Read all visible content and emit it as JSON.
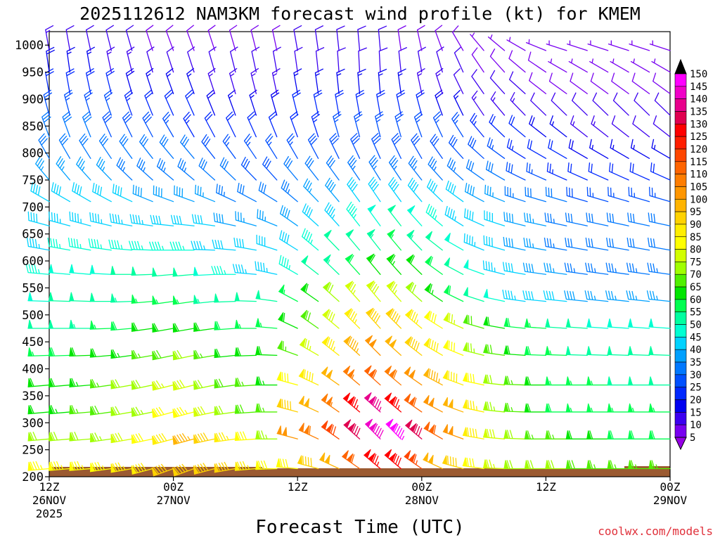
{
  "chart_data": {
    "type": "wind-barb-time-height",
    "title": "2025112612 NAM3KM forecast wind profile (kt) for KMEM",
    "xlabel": "Forecast Time (UTC)",
    "ylabel": "",
    "credit": "coolwx.com/models",
    "y_axis": {
      "units": "hPa",
      "range": [
        1025,
        200
      ],
      "ticks": [
        200,
        250,
        300,
        350,
        400,
        450,
        500,
        550,
        600,
        650,
        700,
        750,
        800,
        850,
        900,
        950,
        1000
      ]
    },
    "x_axis": {
      "units": "forecast hours",
      "range": [
        0,
        60
      ],
      "ticks": [
        {
          "hour": 0,
          "line1": "12Z",
          "line2": "26NOV",
          "line3": "2025"
        },
        {
          "hour": 12,
          "line1": "00Z",
          "line2": "27NOV",
          "line3": ""
        },
        {
          "hour": 24,
          "line1": "12Z",
          "line2": "",
          "line3": ""
        },
        {
          "hour": 36,
          "line1": "00Z",
          "line2": "28NOV",
          "line3": ""
        },
        {
          "hour": 48,
          "line1": "12Z",
          "line2": "",
          "line3": ""
        },
        {
          "hour": 60,
          "line1": "00Z",
          "line2": "29NOV",
          "line3": ""
        }
      ]
    },
    "barb_hours": [
      0,
      2,
      4,
      6,
      8,
      10,
      12,
      14,
      16,
      18,
      20,
      22,
      24,
      26,
      28,
      30,
      32,
      34,
      36,
      38,
      40,
      42,
      44,
      46,
      48,
      50,
      52,
      54,
      56,
      58,
      60
    ],
    "barb_levels": [
      215,
      270,
      320,
      370,
      425,
      475,
      525,
      575,
      620,
      665,
      710,
      750,
      790,
      830,
      870,
      910,
      950,
      990
    ],
    "wind_speed_kt": [
      [
        83,
        83,
        83,
        83,
        86,
        89,
        90,
        90,
        92,
        90,
        85,
        80,
        80,
        90,
        98,
        110,
        125,
        128,
        115,
        98,
        90,
        80,
        75,
        70,
        70,
        70,
        68,
        65,
        65,
        65,
        65
      ],
      [
        70,
        72,
        72,
        74,
        78,
        82,
        88,
        95,
        92,
        85,
        80,
        74,
        100,
        108,
        118,
        132,
        140,
        145,
        132,
        110,
        100,
        88,
        78,
        70,
        65,
        65,
        60,
        60,
        58,
        58,
        58
      ],
      [
        62,
        64,
        66,
        68,
        72,
        74,
        80,
        84,
        78,
        72,
        68,
        66,
        92,
        98,
        106,
        125,
        135,
        125,
        112,
        102,
        98,
        86,
        74,
        66,
        60,
        58,
        56,
        55,
        55,
        55,
        55
      ],
      [
        60,
        62,
        64,
        66,
        70,
        72,
        76,
        78,
        72,
        68,
        66,
        64,
        80,
        88,
        98,
        105,
        110,
        108,
        100,
        95,
        88,
        80,
        72,
        65,
        60,
        56,
        55,
        55,
        52,
        52,
        52
      ],
      [
        55,
        58,
        60,
        62,
        64,
        66,
        68,
        70,
        66,
        62,
        60,
        60,
        65,
        75,
        85,
        95,
        100,
        98,
        92,
        88,
        80,
        74,
        68,
        62,
        58,
        55,
        52,
        50,
        50,
        50,
        50
      ],
      [
        50,
        52,
        54,
        56,
        58,
        60,
        62,
        62,
        60,
        58,
        56,
        56,
        62,
        68,
        78,
        85,
        90,
        90,
        85,
        82,
        76,
        68,
        62,
        58,
        55,
        52,
        50,
        48,
        48,
        48,
        48
      ],
      [
        48,
        50,
        52,
        52,
        54,
        55,
        55,
        55,
        54,
        52,
        50,
        50,
        55,
        62,
        70,
        76,
        78,
        76,
        70,
        64,
        58,
        52,
        48,
        44,
        42,
        40,
        38,
        36,
        36,
        36,
        36
      ],
      [
        46,
        48,
        48,
        48,
        50,
        50,
        50,
        50,
        48,
        46,
        44,
        44,
        46,
        50,
        54,
        58,
        62,
        64,
        62,
        58,
        52,
        48,
        44,
        40,
        38,
        36,
        34,
        34,
        34,
        34,
        34
      ],
      [
        44,
        46,
        46,
        46,
        46,
        46,
        46,
        46,
        44,
        42,
        40,
        40,
        42,
        46,
        50,
        52,
        54,
        56,
        54,
        52,
        48,
        44,
        40,
        38,
        36,
        34,
        32,
        32,
        32,
        32,
        32
      ],
      [
        42,
        44,
        44,
        44,
        44,
        44,
        42,
        42,
        40,
        38,
        36,
        36,
        38,
        42,
        44,
        46,
        48,
        50,
        48,
        46,
        44,
        42,
        40,
        38,
        36,
        34,
        32,
        30,
        30,
        30,
        30
      ],
      [
        40,
        40,
        40,
        40,
        40,
        38,
        38,
        38,
        36,
        34,
        32,
        32,
        34,
        36,
        38,
        40,
        40,
        40,
        40,
        40,
        40,
        38,
        36,
        34,
        32,
        30,
        28,
        26,
        26,
        26,
        26
      ],
      [
        36,
        36,
        36,
        36,
        34,
        34,
        34,
        34,
        32,
        30,
        28,
        28,
        30,
        32,
        32,
        34,
        34,
        34,
        34,
        34,
        34,
        32,
        30,
        28,
        26,
        24,
        22,
        20,
        20,
        20,
        20
      ],
      [
        32,
        32,
        32,
        32,
        30,
        30,
        30,
        30,
        28,
        26,
        26,
        26,
        26,
        28,
        28,
        28,
        28,
        28,
        28,
        28,
        28,
        28,
        26,
        24,
        22,
        20,
        18,
        16,
        16,
        16,
        16
      ],
      [
        30,
        30,
        30,
        28,
        28,
        28,
        26,
        24,
        22,
        20,
        20,
        20,
        22,
        24,
        26,
        26,
        26,
        26,
        26,
        26,
        26,
        24,
        22,
        20,
        18,
        16,
        14,
        14,
        12,
        12,
        12
      ],
      [
        26,
        26,
        26,
        26,
        24,
        22,
        22,
        20,
        18,
        16,
        16,
        18,
        20,
        20,
        20,
        20,
        20,
        20,
        20,
        18,
        16,
        14,
        14,
        14,
        12,
        12,
        10,
        10,
        10,
        10,
        10
      ],
      [
        22,
        22,
        20,
        20,
        18,
        16,
        16,
        16,
        14,
        14,
        14,
        14,
        16,
        16,
        16,
        16,
        16,
        16,
        14,
        14,
        12,
        12,
        10,
        10,
        8,
        8,
        8,
        8,
        8,
        8,
        8
      ],
      [
        18,
        16,
        16,
        14,
        14,
        12,
        12,
        12,
        10,
        10,
        10,
        10,
        12,
        12,
        12,
        12,
        12,
        12,
        12,
        10,
        10,
        8,
        8,
        8,
        8,
        6,
        6,
        6,
        6,
        6,
        6
      ],
      [
        14,
        12,
        12,
        10,
        10,
        8,
        8,
        8,
        8,
        8,
        8,
        8,
        10,
        10,
        10,
        10,
        10,
        8,
        8,
        8,
        8,
        6,
        6,
        6,
        6,
        5,
        5,
        5,
        5,
        5,
        5
      ]
    ],
    "wind_dir_deg": [
      [
        265,
        265,
        265,
        262,
        260,
        255,
        250,
        250,
        255,
        260,
        265,
        268,
        275,
        285,
        295,
        305,
        310,
        310,
        305,
        295,
        285,
        278,
        272,
        270,
        270,
        270,
        270,
        270,
        270,
        270,
        270
      ],
      [
        265,
        265,
        265,
        262,
        260,
        258,
        255,
        255,
        258,
        262,
        266,
        270,
        285,
        295,
        305,
        312,
        315,
        315,
        310,
        300,
        290,
        280,
        275,
        272,
        270,
        270,
        270,
        270,
        270,
        270,
        270
      ],
      [
        265,
        265,
        265,
        262,
        260,
        258,
        255,
        255,
        258,
        262,
        266,
        270,
        285,
        295,
        305,
        310,
        312,
        310,
        305,
        298,
        290,
        282,
        276,
        272,
        270,
        270,
        270,
        270,
        270,
        270,
        270
      ],
      [
        265,
        265,
        265,
        262,
        260,
        258,
        256,
        256,
        258,
        262,
        266,
        270,
        285,
        295,
        305,
        310,
        312,
        310,
        305,
        298,
        290,
        282,
        276,
        272,
        270,
        270,
        270,
        270,
        270,
        270,
        270
      ],
      [
        268,
        268,
        268,
        265,
        262,
        260,
        258,
        258,
        260,
        264,
        268,
        272,
        290,
        300,
        308,
        312,
        315,
        312,
        308,
        300,
        292,
        284,
        278,
        274,
        272,
        272,
        272,
        272,
        272,
        272,
        272
      ],
      [
        270,
        270,
        270,
        268,
        265,
        262,
        260,
        260,
        262,
        266,
        270,
        275,
        295,
        305,
        310,
        315,
        318,
        315,
        310,
        302,
        294,
        286,
        280,
        276,
        274,
        274,
        274,
        274,
        274,
        274,
        274
      ],
      [
        272,
        272,
        272,
        270,
        268,
        265,
        262,
        262,
        264,
        268,
        272,
        278,
        298,
        305,
        312,
        318,
        320,
        318,
        312,
        304,
        296,
        288,
        282,
        278,
        276,
        276,
        276,
        276,
        276,
        276,
        276
      ],
      [
        275,
        275,
        275,
        273,
        270,
        268,
        265,
        265,
        267,
        270,
        275,
        282,
        300,
        308,
        314,
        318,
        320,
        318,
        314,
        306,
        298,
        290,
        284,
        280,
        278,
        278,
        278,
        278,
        278,
        278,
        278
      ],
      [
        280,
        280,
        280,
        278,
        275,
        272,
        270,
        270,
        272,
        275,
        280,
        288,
        302,
        310,
        316,
        320,
        322,
        320,
        316,
        308,
        300,
        292,
        286,
        282,
        280,
        280,
        280,
        280,
        280,
        280,
        280
      ],
      [
        285,
        285,
        285,
        283,
        280,
        278,
        276,
        276,
        278,
        282,
        286,
        292,
        305,
        312,
        318,
        322,
        324,
        322,
        318,
        310,
        302,
        294,
        288,
        284,
        282,
        282,
        282,
        282,
        282,
        282,
        282
      ],
      [
        300,
        300,
        300,
        298,
        295,
        292,
        290,
        290,
        292,
        295,
        298,
        302,
        310,
        316,
        320,
        324,
        326,
        324,
        320,
        314,
        306,
        298,
        292,
        288,
        286,
        286,
        286,
        286,
        286,
        286,
        286
      ],
      [
        320,
        320,
        318,
        316,
        314,
        312,
        310,
        310,
        312,
        314,
        316,
        318,
        320,
        322,
        324,
        326,
        328,
        326,
        322,
        318,
        312,
        305,
        300,
        296,
        294,
        294,
        294,
        294,
        294,
        294,
        294
      ],
      [
        330,
        330,
        328,
        326,
        324,
        322,
        320,
        320,
        322,
        324,
        326,
        328,
        330,
        332,
        334,
        335,
        336,
        334,
        330,
        325,
        318,
        312,
        306,
        302,
        300,
        300,
        300,
        300,
        300,
        300,
        300
      ],
      [
        340,
        340,
        338,
        336,
        334,
        332,
        330,
        330,
        332,
        334,
        336,
        338,
        340,
        342,
        344,
        345,
        346,
        344,
        340,
        335,
        328,
        320,
        314,
        310,
        308,
        308,
        308,
        308,
        308,
        308,
        308
      ],
      [
        345,
        345,
        343,
        341,
        340,
        338,
        336,
        336,
        338,
        340,
        342,
        344,
        346,
        348,
        350,
        350,
        350,
        348,
        345,
        340,
        334,
        326,
        320,
        316,
        314,
        314,
        314,
        314,
        314,
        314,
        314
      ],
      [
        350,
        350,
        348,
        346,
        344,
        342,
        340,
        340,
        342,
        344,
        346,
        348,
        350,
        352,
        354,
        355,
        355,
        352,
        348,
        342,
        334,
        325,
        318,
        312,
        308,
        306,
        306,
        306,
        306,
        306,
        306
      ],
      [
        352,
        352,
        350,
        348,
        346,
        344,
        342,
        342,
        344,
        346,
        348,
        350,
        352,
        354,
        356,
        357,
        357,
        354,
        350,
        344,
        336,
        326,
        318,
        310,
        304,
        300,
        300,
        300,
        300,
        300,
        300
      ],
      [
        350,
        350,
        348,
        346,
        344,
        342,
        340,
        340,
        342,
        344,
        346,
        348,
        350,
        352,
        354,
        355,
        355,
        352,
        348,
        340,
        330,
        320,
        310,
        300,
        292,
        288,
        288,
        288,
        288,
        288,
        288
      ]
    ],
    "colorbar": {
      "labels": [
        150,
        145,
        140,
        135,
        130,
        125,
        120,
        115,
        110,
        105,
        100,
        95,
        90,
        85,
        80,
        75,
        70,
        65,
        60,
        55,
        50,
        45,
        40,
        35,
        30,
        25,
        20,
        15,
        10,
        5
      ],
      "colors": [
        "#000000",
        "#ff00ff",
        "#f000c8",
        "#e8008c",
        "#e00050",
        "#ff0000",
        "#ff1e00",
        "#ff4600",
        "#ff6400",
        "#ff7d00",
        "#ff9600",
        "#ffb400",
        "#ffd200",
        "#ffee00",
        "#ffff00",
        "#d2ff00",
        "#a0ff00",
        "#50f000",
        "#00e600",
        "#00ff50",
        "#00ffa0",
        "#00ffd2",
        "#00d2ff",
        "#00a0ff",
        "#0078ff",
        "#0050ff",
        "#0028ff",
        "#0000f0",
        "#3c00f0",
        "#7800f0",
        "#9600e6"
      ]
    },
    "terrain_color": "#9b5a31"
  }
}
